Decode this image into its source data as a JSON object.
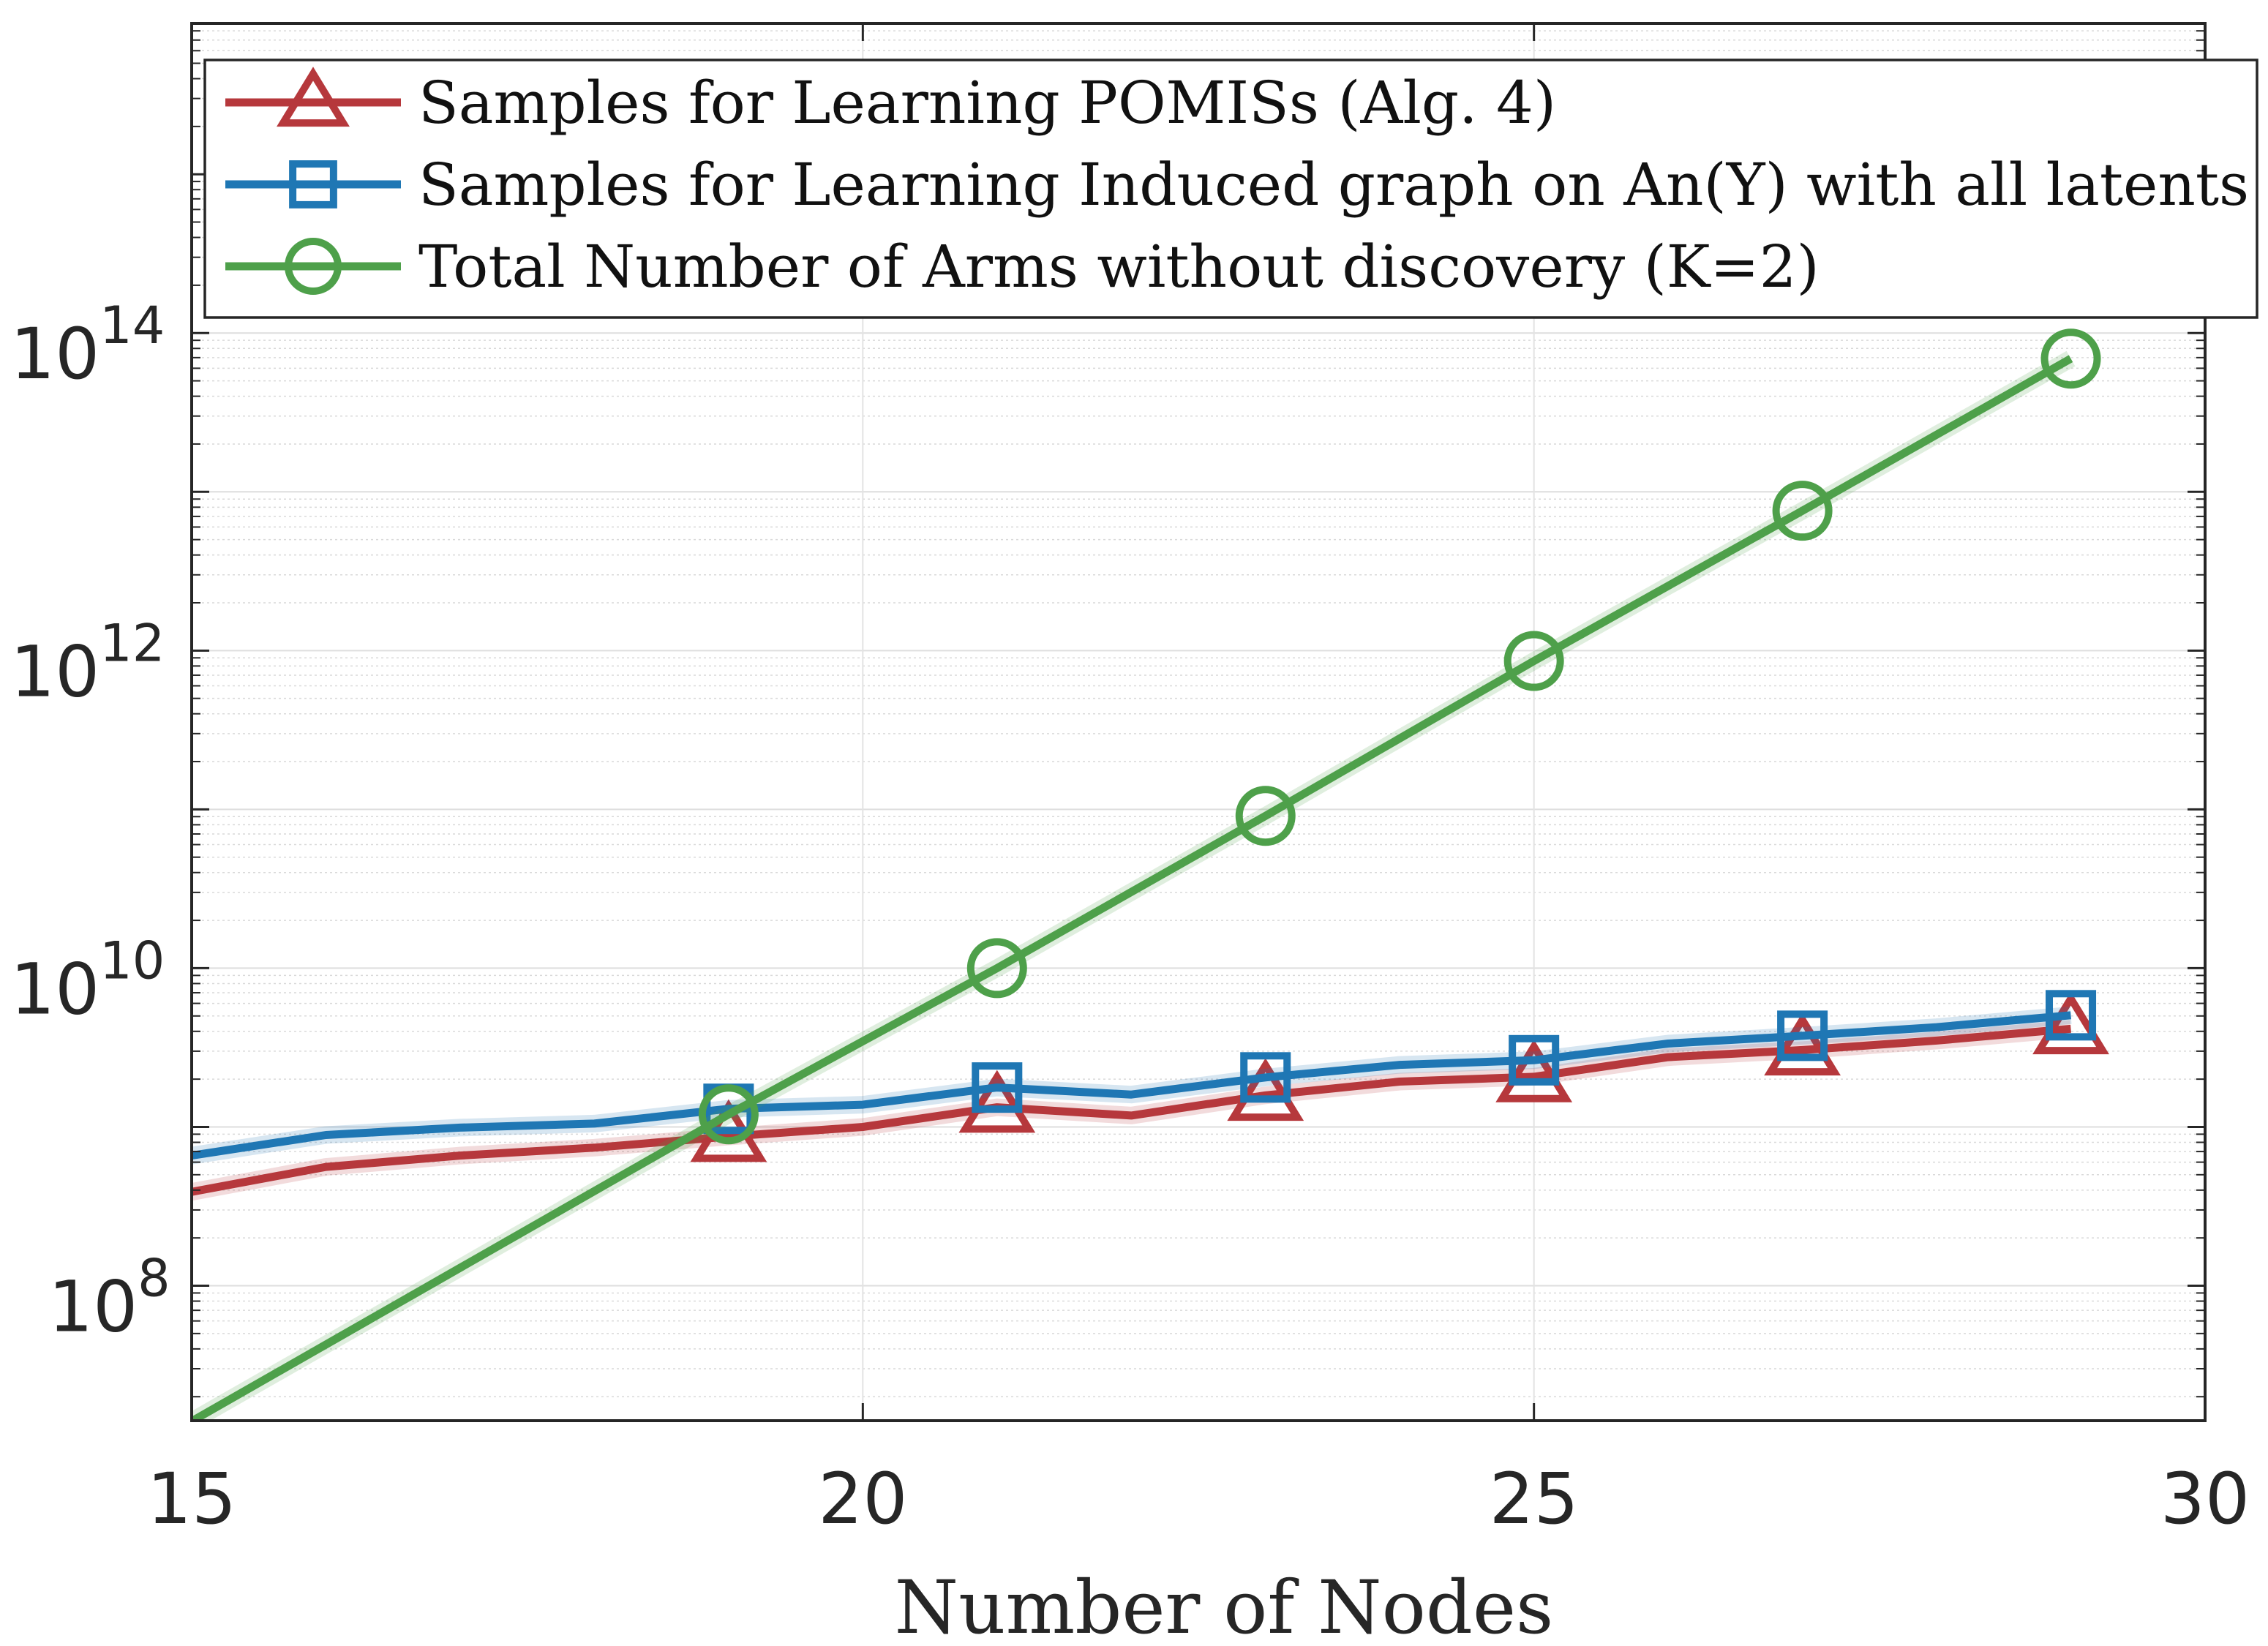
{
  "chart_data": {
    "type": "line",
    "title": "",
    "xlabel": "Number of Nodes",
    "ylabel": "",
    "xlim": [
      15,
      30
    ],
    "ylim_log10": [
      7.15,
      15.95
    ],
    "y_scale": "log",
    "grid": true,
    "minor_grid": true,
    "legend_position": "top-left",
    "x_ticks": [
      15,
      20,
      25,
      30
    ],
    "x_tick_labels": [
      "15",
      "20",
      "25",
      "30"
    ],
    "y_ticks": [
      {
        "base": "10",
        "exp": "8",
        "log10": 8
      },
      {
        "base": "10",
        "exp": "10",
        "log10": 10
      },
      {
        "base": "10",
        "exp": "12",
        "log10": 12
      },
      {
        "base": "10",
        "exp": "14",
        "log10": 14
      }
    ],
    "series": [
      {
        "name": "Samples for Learning POMISs (Alg. 4)",
        "color": "#b6383c",
        "marker": "triangle",
        "marker_x": [
          19,
          21,
          23,
          25,
          27,
          29
        ],
        "x": [
          15,
          16,
          17,
          18,
          19,
          20,
          21,
          22,
          23,
          24,
          25,
          26,
          27,
          28,
          29
        ],
        "y": [
          390000000.0,
          560000000.0,
          660000000.0,
          740000000.0,
          870000000.0,
          1000000000.0,
          1330000000.0,
          1180000000.0,
          1580000000.0,
          1930000000.0,
          2070000000.0,
          2750000000.0,
          3050000000.0,
          3500000000.0,
          4150000000.0
        ]
      },
      {
        "name": "Samples for Learning Induced graph on An(Y) with all latents",
        "color": "#1f77b4",
        "marker": "square",
        "marker_x": [
          19,
          21,
          23,
          25,
          27,
          29
        ],
        "x": [
          15,
          16,
          17,
          18,
          19,
          20,
          21,
          22,
          23,
          24,
          25,
          26,
          27,
          28,
          29
        ],
        "y": [
          660000000.0,
          890000000.0,
          990000000.0,
          1050000000.0,
          1300000000.0,
          1380000000.0,
          1770000000.0,
          1600000000.0,
          2050000000.0,
          2460000000.0,
          2630000000.0,
          3350000000.0,
          3750000000.0,
          4250000000.0,
          5050000000.0
        ]
      },
      {
        "name": "Total Number of Arms without discovery (K=2)",
        "color": "#4ea04a",
        "marker": "circle",
        "marker_x": [
          19,
          21,
          23,
          25,
          27,
          29
        ],
        "x": [
          15,
          19,
          21,
          23,
          25,
          27,
          29
        ],
        "y": [
          14000000.0,
          1200000000.0,
          10000000000.0,
          91000000000.0,
          860000000000.0,
          7600000000000.0,
          69000000000000.0
        ]
      }
    ]
  }
}
